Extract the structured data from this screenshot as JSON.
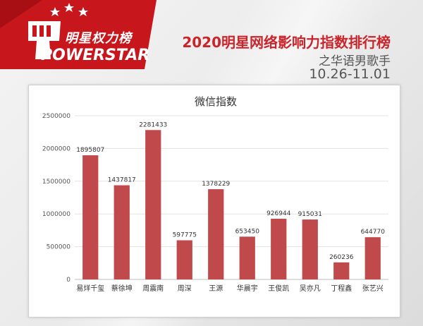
{
  "header": {
    "logo_cn": "明星权力榜",
    "logo_en": "POWERSTAR",
    "title": "2020明星网络影响力指数排行榜",
    "subtitle": "之华语男歌手",
    "date_range": "10.26-11.01"
  },
  "colors": {
    "bar": "#c0494b",
    "logo_red": "#c8161d",
    "title_red": "#c9252b"
  },
  "chart_data": {
    "type": "bar",
    "title": "微信指数",
    "categories": [
      "易烊千玺",
      "蔡徐坤",
      "周震南",
      "周深",
      "王源",
      "华晨宇",
      "王俊凯",
      "吴亦凡",
      "丁程鑫",
      "张艺兴"
    ],
    "values": [
      1895807,
      1437817,
      2281433,
      597775,
      1378229,
      653450,
      926944,
      915031,
      260236,
      644770
    ],
    "ylim": [
      0,
      2500000
    ],
    "yticks": [
      0,
      500000,
      1000000,
      1500000,
      2000000,
      2500000
    ],
    "grid": true,
    "xlabel": "",
    "ylabel": ""
  }
}
